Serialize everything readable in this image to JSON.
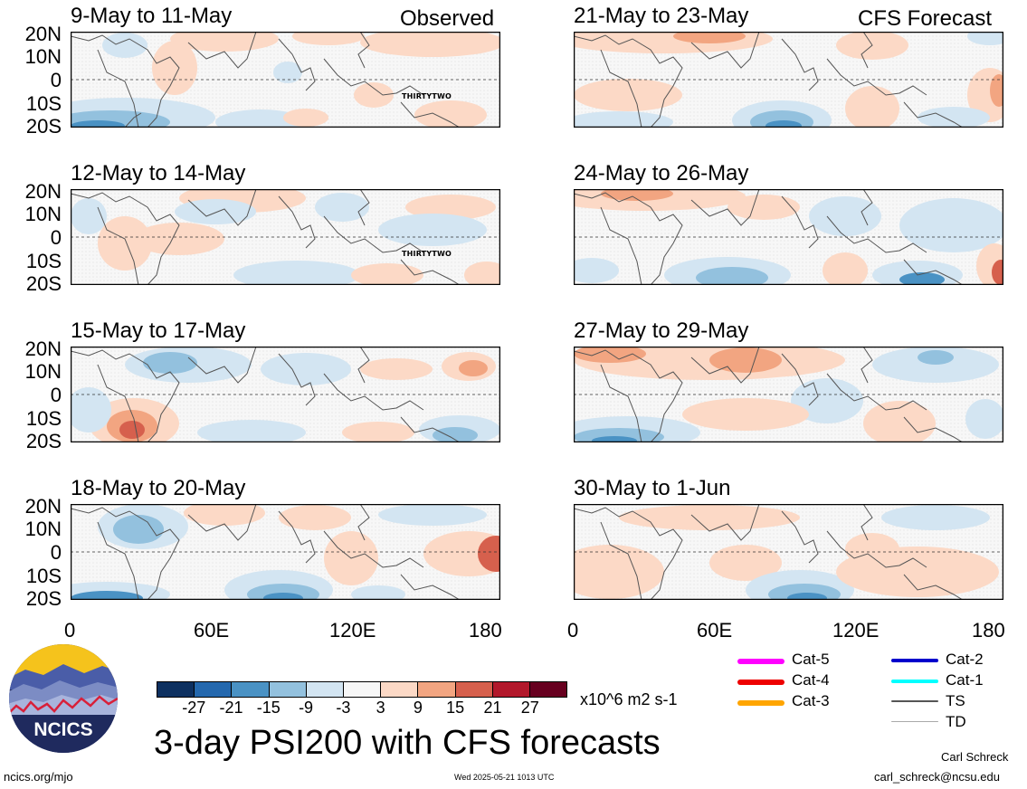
{
  "panels_left": [
    {
      "title": "9-May to 11-May",
      "tag": "Observed",
      "storm": "THIRTYTWO"
    },
    {
      "title": "12-May to 14-May",
      "tag": "",
      "storm": "THIRTYTWO"
    },
    {
      "title": "15-May to 17-May",
      "tag": "",
      "storm": ""
    },
    {
      "title": "18-May to 20-May",
      "tag": "",
      "storm": ""
    }
  ],
  "panels_right": [
    {
      "title": "21-May to 23-May",
      "tag": "CFS Forecast",
      "storm": ""
    },
    {
      "title": "24-May to 26-May",
      "tag": "",
      "storm": ""
    },
    {
      "title": "27-May to 29-May",
      "tag": "",
      "storm": ""
    },
    {
      "title": "30-May to 1-Jun",
      "tag": "",
      "storm": ""
    }
  ],
  "lat_labels": [
    "20N",
    "10N",
    "0",
    "10S",
    "20S"
  ],
  "lon_labels": [
    "0",
    "60E",
    "120E",
    "180"
  ],
  "colorbar": {
    "colors": [
      "#0d3060",
      "#2468ae",
      "#4a92c4",
      "#93c1de",
      "#d3e5f2",
      "#f7f7f7",
      "#fcd9c6",
      "#f2a581",
      "#d6604d",
      "#b2182b",
      "#67001f"
    ],
    "labels": [
      "-27",
      "-21",
      "-15",
      "-9",
      "-3",
      "3",
      "9",
      "15",
      "21",
      "27"
    ],
    "units": "x10^6 m2 s-1"
  },
  "title": "3-day PSI200 with CFS forecasts",
  "legend": [
    {
      "label": "Cat-5",
      "color": "#ff00ff"
    },
    {
      "label": "Cat-4",
      "color": "#ee0000"
    },
    {
      "label": "Cat-3",
      "color": "#ffa500"
    },
    {
      "label": "Cat-2",
      "color": "#0000cc"
    },
    {
      "label": "Cat-1",
      "color": "#00ffff"
    },
    {
      "label": "TS",
      "color": "#555555"
    },
    {
      "label": "TD",
      "color": "#aaaaaa"
    }
  ],
  "logo_text": "NCICS",
  "footer": {
    "url": "ncics.org/mjo",
    "timestamp": "Wed 2025-05-21 1013 UTC",
    "author": "Carl Schreck",
    "email": "carl_schreck@ncsu.edu"
  }
}
